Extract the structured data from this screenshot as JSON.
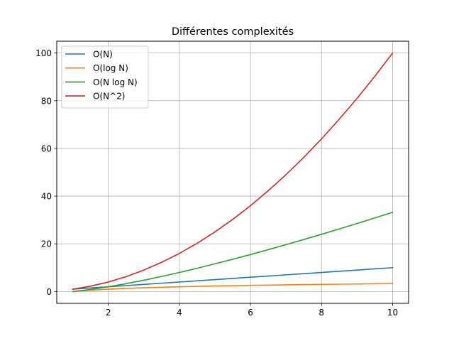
{
  "chart_data": {
    "type": "line",
    "title": "Différentes complexités",
    "xlabel": "",
    "ylabel": "",
    "xlim": [
      0.55,
      10.45
    ],
    "ylim": [
      -4.95,
      104.95
    ],
    "grid": true,
    "legend_position": "upper left",
    "x_ticks": [
      2,
      4,
      6,
      8,
      10
    ],
    "y_ticks": [
      0,
      20,
      40,
      60,
      80,
      100
    ],
    "x": [
      1,
      1.5,
      2,
      2.5,
      3,
      3.5,
      4,
      4.5,
      5,
      5.5,
      6,
      6.5,
      7,
      7.5,
      8,
      8.5,
      9,
      9.5,
      10
    ],
    "series": [
      {
        "name": "O(N)",
        "color": "#1f77b4",
        "values": [
          1,
          1.5,
          2,
          2.5,
          3,
          3.5,
          4,
          4.5,
          5,
          5.5,
          6,
          6.5,
          7,
          7.5,
          8,
          8.5,
          9,
          9.5,
          10
        ]
      },
      {
        "name": "O(log N)",
        "color": "#ff7f0e",
        "values": [
          0,
          0.58,
          1,
          1.32,
          1.58,
          1.81,
          2,
          2.17,
          2.32,
          2.46,
          2.58,
          2.7,
          2.81,
          2.91,
          3,
          3.09,
          3.17,
          3.25,
          3.32
        ]
      },
      {
        "name": "O(N log N)",
        "color": "#2ca02c",
        "values": [
          0,
          0.88,
          2,
          3.3,
          4.75,
          6.33,
          8,
          9.76,
          11.61,
          13.53,
          15.51,
          17.55,
          19.65,
          21.8,
          24,
          26.24,
          28.53,
          30.86,
          33.22
        ]
      },
      {
        "name": "O(N^2)",
        "color": "#d62728",
        "values": [
          1,
          2.25,
          4,
          6.25,
          9,
          12.25,
          16,
          20.25,
          25,
          30.25,
          36,
          42.25,
          49,
          56.25,
          64,
          72.25,
          81,
          90.25,
          100
        ]
      }
    ]
  }
}
